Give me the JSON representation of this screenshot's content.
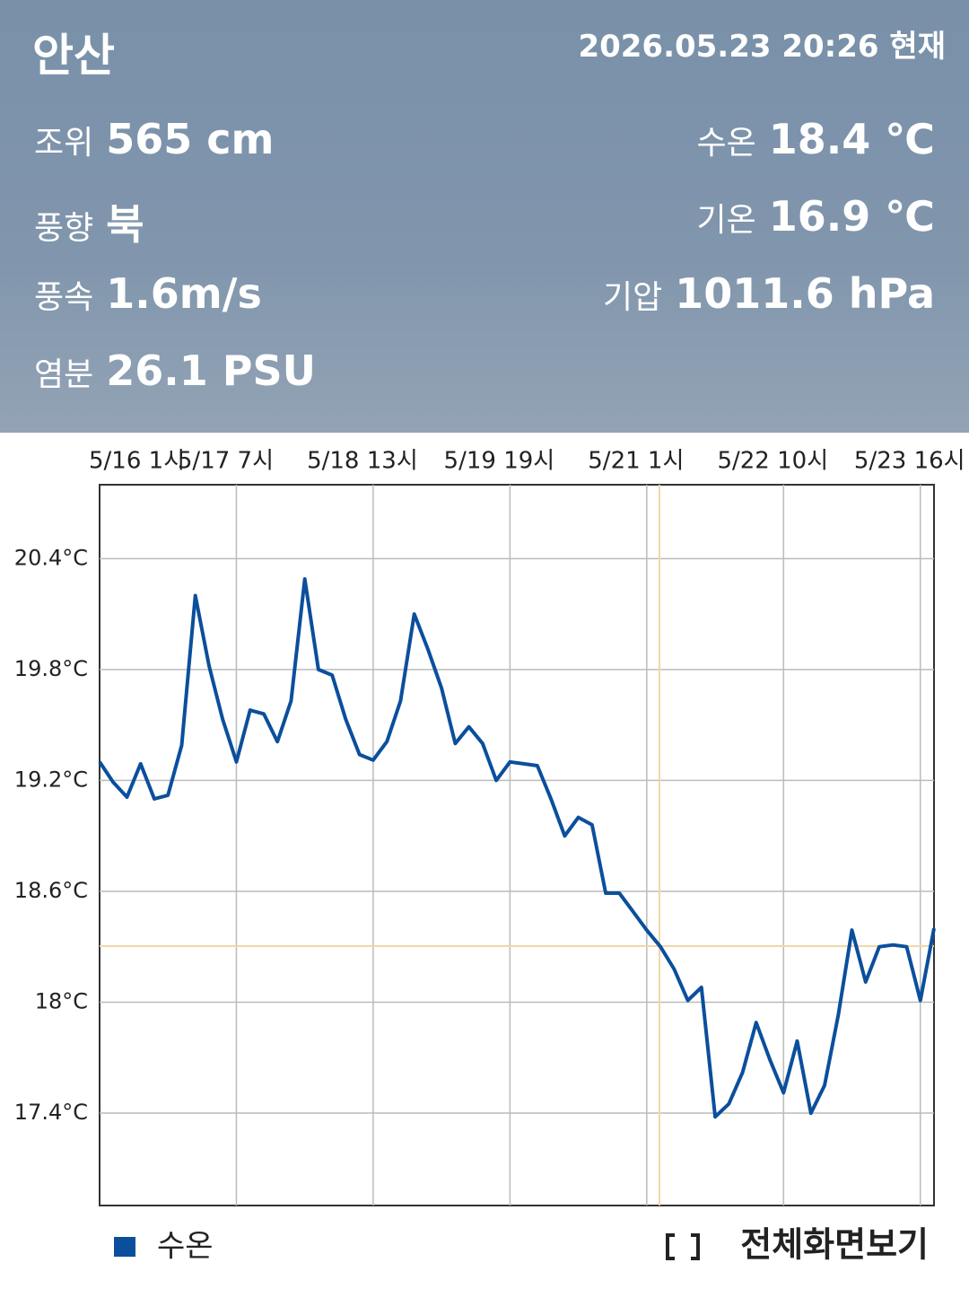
{
  "header": {
    "station": "안산",
    "datetime": "2026.05.23 20:26 현재",
    "left": [
      {
        "label": "조위",
        "value": "565 cm"
      },
      {
        "label": "풍향",
        "value": "북"
      },
      {
        "label": "풍속",
        "value": "1.6m/s"
      },
      {
        "label": "염분",
        "value": "26.1 PSU"
      }
    ],
    "right": [
      {
        "label": "수온",
        "value": "18.4 ℃"
      },
      {
        "label": "기온",
        "value": "16.9 ℃"
      },
      {
        "label": "기압",
        "value": "1011.6 hPa"
      }
    ]
  },
  "chart_data": {
    "type": "line",
    "categories": [
      "5/16 1시",
      null,
      null,
      null,
      null,
      null,
      null,
      null,
      null,
      null,
      "5/17 7시",
      null,
      null,
      null,
      null,
      null,
      null,
      null,
      null,
      null,
      "5/18 13시",
      null,
      null,
      null,
      null,
      null,
      null,
      null,
      null,
      null,
      "5/19 19시",
      null,
      null,
      null,
      null,
      null,
      null,
      null,
      null,
      null,
      "5/21 1시",
      null,
      null,
      null,
      null,
      null,
      null,
      null,
      null,
      null,
      "5/22 10시",
      null,
      null,
      null,
      null,
      null,
      null,
      null,
      null,
      null,
      "5/23 16시",
      null
    ],
    "series": [
      {
        "name": "수온",
        "color": "#0b4f9c",
        "values": [
          19.3,
          19.19,
          19.11,
          19.29,
          19.1,
          19.12,
          19.39,
          20.2,
          19.82,
          19.53,
          19.3,
          19.58,
          19.56,
          19.41,
          19.63,
          20.29,
          19.8,
          19.77,
          19.53,
          19.34,
          19.31,
          19.41,
          19.63,
          20.1,
          19.91,
          19.7,
          19.4,
          19.49,
          19.4,
          19.2,
          19.3,
          19.29,
          19.28,
          19.1,
          18.9,
          19.0,
          18.96,
          18.59,
          18.59,
          18.49,
          18.39,
          18.3,
          18.18,
          18.01,
          18.08,
          17.38,
          17.45,
          17.62,
          17.89,
          17.69,
          17.51,
          17.79,
          17.4,
          17.55,
          17.93,
          18.39,
          18.11,
          18.3,
          18.31,
          18.3,
          18.01,
          18.4
        ]
      }
    ],
    "ylim": [
      16.9,
      20.8
    ],
    "yticks": [
      {
        "value": 17.4,
        "label": "17.4°C"
      },
      {
        "value": 18,
        "label": "18°C"
      },
      {
        "value": 18.6,
        "label": "18.6°C"
      },
      {
        "value": 19.2,
        "label": "19.2°C"
      },
      {
        "value": 19.8,
        "label": "19.8°C"
      },
      {
        "value": 20.4,
        "label": "20.4°C"
      }
    ],
    "grid": true
  },
  "fullscreen_button": "전체화면보기"
}
